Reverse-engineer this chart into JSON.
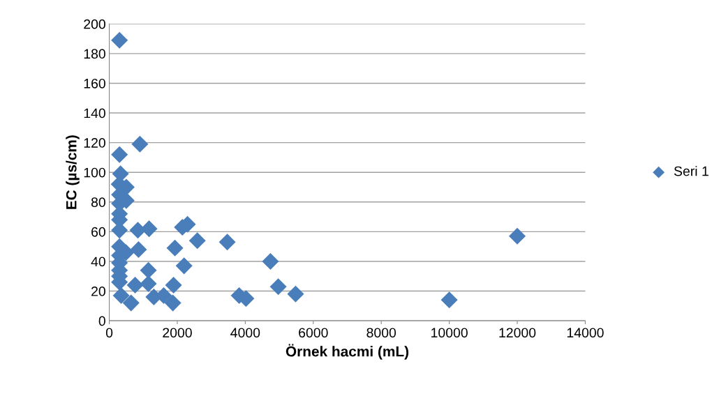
{
  "chart_data": {
    "type": "scatter",
    "xlabel": "Örnek hacmi (mL)",
    "ylabel": "EC (µs/cm)",
    "xlim": [
      0,
      14000
    ],
    "xticks": [
      0,
      2000,
      4000,
      6000,
      8000,
      10000,
      12000,
      14000
    ],
    "ylim": [
      0,
      200
    ],
    "yticks": [
      0,
      20,
      40,
      60,
      80,
      100,
      120,
      140,
      160,
      180,
      200
    ],
    "grid": "y",
    "legend": "right",
    "marker": "diamond",
    "series": [
      {
        "name": "Seri 1",
        "color": "#4a7ebb",
        "x": [
          300,
          300,
          900,
          330,
          290,
          500,
          300,
          500,
          300,
          300,
          300,
          300,
          840,
          1170,
          2150,
          2300,
          2590,
          3470,
          1930,
          860,
          300,
          490,
          300,
          300,
          4740,
          2200,
          1150,
          300,
          300,
          300,
          760,
          1150,
          1890,
          4970,
          5480,
          3820,
          4020,
          350,
          640,
          1310,
          1600,
          1870,
          10000,
          12000
        ],
        "values": [
          189,
          112,
          119,
          99,
          92,
          90,
          85,
          81,
          79,
          72,
          68,
          61,
          61,
          62,
          63,
          65,
          54,
          53,
          49,
          48,
          50,
          46,
          44,
          39,
          40,
          37,
          34,
          34,
          30,
          26,
          24,
          25,
          24,
          23,
          18,
          17,
          15,
          17,
          12,
          16,
          17,
          12,
          14,
          57
        ]
      }
    ]
  }
}
